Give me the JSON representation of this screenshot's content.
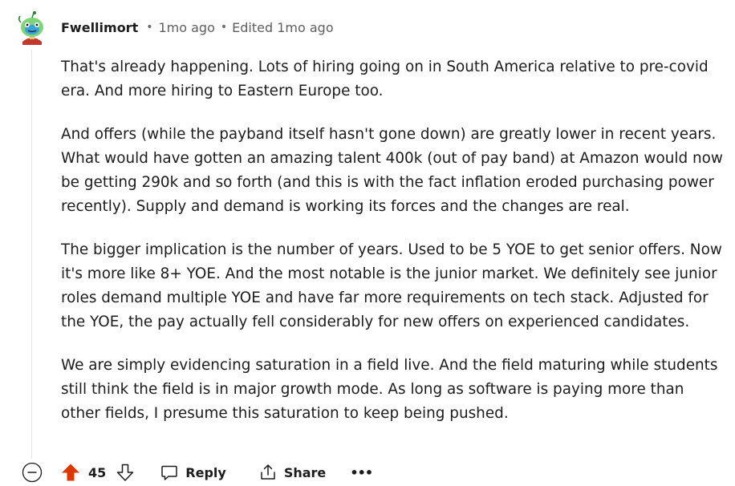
{
  "comment": {
    "author": "Fwellimort",
    "posted": "1mo ago",
    "edited": "Edited 1mo ago",
    "separator": "•",
    "paragraphs": [
      "That's already happening. Lots of hiring going on in South America relative to pre-covid era. And more hiring to Eastern Europe too.",
      "And offers (while the payband itself hasn't gone down) are greatly lower in recent years. What would have gotten an amazing talent 400k (out of pay band) at Amazon would now be getting 290k and so forth (and this is with the fact inflation eroded purchasing power recently). Supply and demand is working its forces and the changes are real.",
      "The bigger implication is the number of years. Used to be 5 YOE to get senior offers. Now it's more like 8+ YOE. And the most notable is the junior market. We definitely see junior roles demand multiple YOE and have far more requirements on tech stack. Adjusted for the YOE, the pay actually fell considerably for new offers on experienced candidates.",
      "We are simply evidencing saturation in a field live. And the field maturing while students still think the field is in major growth mode. As long as software is paying more than other fields, I presume this saturation to keep being pushed."
    ]
  },
  "actions": {
    "score": "45",
    "reply_label": "Reply",
    "share_label": "Share",
    "more_label": "•••",
    "upvote_color": "#d93900"
  },
  "icons": {
    "avatar": "snoo-avatar-icon",
    "collapse": "collapse-minus-icon",
    "upvote": "upvote-arrow-icon",
    "downvote": "downvote-arrow-icon",
    "reply": "comment-bubble-icon",
    "share": "share-icon",
    "more": "more-options-icon"
  }
}
